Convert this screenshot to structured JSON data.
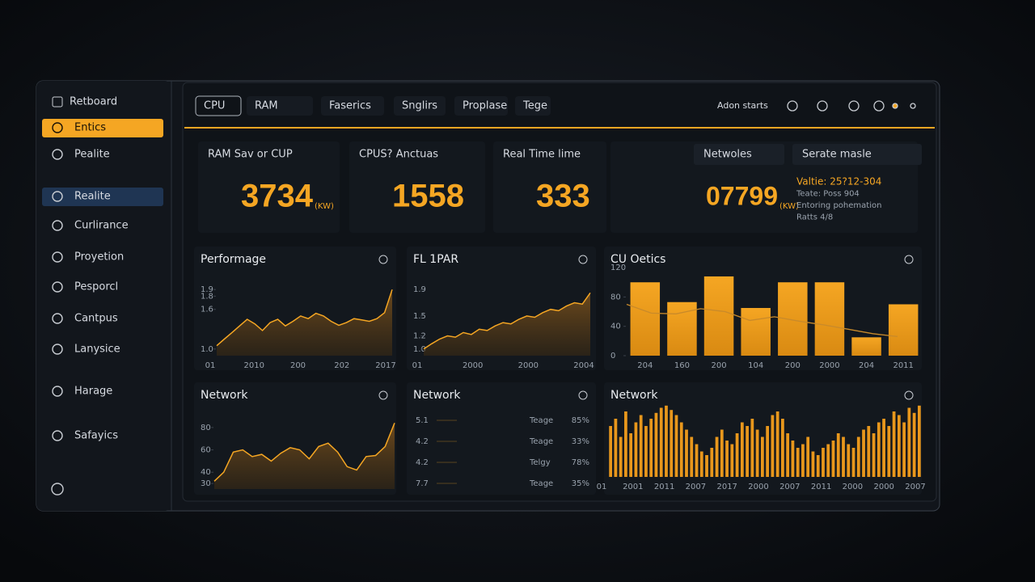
{
  "sidebar": {
    "title": "Retboard",
    "items": [
      "Entics",
      "Pealite",
      "Realite",
      "Curlirance",
      "Proyetion",
      "Pesporcl",
      "Cantpus",
      "Lanysice",
      "Harage",
      "Safayics"
    ],
    "active": 0,
    "selected": 2
  },
  "toolbar": {
    "tabs": [
      "CPU",
      "RAM",
      "Faserics",
      "Snglirs",
      "Proplase",
      "Tege"
    ],
    "action": "Adon starts"
  },
  "stats": [
    {
      "title": "RAM Sav or CUP",
      "value": "3734",
      "unit": "(KW)"
    },
    {
      "title": "CPUS? Anctuas",
      "value": "1558"
    },
    {
      "title": "Real Time lime",
      "value": "333"
    },
    {
      "value": "07799",
      "unit": "(KW)"
    }
  ],
  "filters": [
    "Netwoles",
    "Serate masle"
  ],
  "info": [
    "Valtie: 25?12-304",
    "Teate: Poss 904",
    "Entoring pohemation",
    "Ratts 4/8"
  ],
  "charts": [
    {
      "type": "area",
      "title": "Performage",
      "ylim": [
        0.9,
        2.0
      ],
      "yticks": [
        {
          "value": 1.0,
          "label": "1.0"
        },
        1.6,
        1.8,
        1.9
      ],
      "categories": [
        "01",
        "2010",
        "200",
        "202",
        "2017"
      ],
      "values": [
        1.05,
        1.15,
        1.25,
        1.35,
        1.45,
        1.38,
        1.28,
        1.4,
        1.45,
        1.35,
        1.42,
        1.5,
        1.46,
        1.54,
        1.5,
        1.42,
        1.36,
        1.4,
        1.46,
        1.44,
        1.42,
        1.46,
        1.55,
        1.9
      ]
    },
    {
      "type": "area",
      "title": "FL 1PAR",
      "ylim": [
        0.9,
        2.0
      ],
      "yticks": [
        {
          "value": 1.0,
          "label": "1.0"
        },
        1.2,
        1.5,
        1.9
      ],
      "categories": [
        "01",
        "2000",
        "2000",
        "2004"
      ],
      "values": [
        1.0,
        1.08,
        1.15,
        1.2,
        1.18,
        1.25,
        1.22,
        1.3,
        1.28,
        1.35,
        1.4,
        1.38,
        1.45,
        1.5,
        1.48,
        1.55,
        1.6,
        1.58,
        1.65,
        1.7,
        1.68,
        1.85
      ]
    },
    {
      "type": "barline",
      "title": "CU Oetics",
      "ylim": [
        0,
        130
      ],
      "yticks": [
        0,
        40,
        80,
        120
      ],
      "categories": [
        "204",
        "160",
        "200",
        "104",
        "200",
        "2000",
        "204",
        "2011"
      ],
      "values": [
        100,
        73,
        108,
        65,
        100,
        100,
        25,
        70
      ],
      "line": [
        70,
        58,
        57,
        64,
        60,
        48,
        53,
        47,
        42,
        36,
        30,
        26
      ]
    },
    {
      "type": "area",
      "title": "Network",
      "ylim": [
        25,
        90
      ],
      "yticks": [
        30,
        40,
        60,
        80
      ],
      "values": [
        32,
        40,
        58,
        60,
        54,
        56,
        50,
        57,
        62,
        60,
        52,
        63,
        66,
        58,
        45,
        42,
        54,
        55,
        63,
        84
      ]
    },
    {
      "type": "list",
      "title": "Network",
      "rows": [
        [
          "5.1",
          "Teage",
          "85%"
        ],
        [
          "4.2",
          "Teage",
          "33%"
        ],
        [
          "4.2",
          "Telgy",
          "78%"
        ],
        [
          "7.7",
          "Teage",
          "35%"
        ]
      ]
    },
    {
      "type": "columns",
      "title": "Network",
      "ylim": [
        0,
        100
      ],
      "categories": [
        "01",
        "2001",
        "2011",
        "2007",
        "2017",
        "2000",
        "2007",
        "2011",
        "2000",
        "2000",
        "2007"
      ],
      "values": [
        70,
        80,
        55,
        90,
        60,
        75,
        85,
        70,
        80,
        88,
        95,
        98,
        92,
        85,
        75,
        65,
        55,
        45,
        35,
        30,
        40,
        55,
        65,
        50,
        45,
        60,
        75,
        70,
        80,
        65,
        55,
        70,
        85,
        90,
        80,
        60,
        50,
        40,
        45,
        55,
        35,
        30,
        40,
        45,
        50,
        60,
        55,
        45,
        40,
        55,
        65,
        70,
        60,
        75,
        80,
        70,
        90,
        85,
        75,
        95,
        88,
        98
      ]
    }
  ]
}
